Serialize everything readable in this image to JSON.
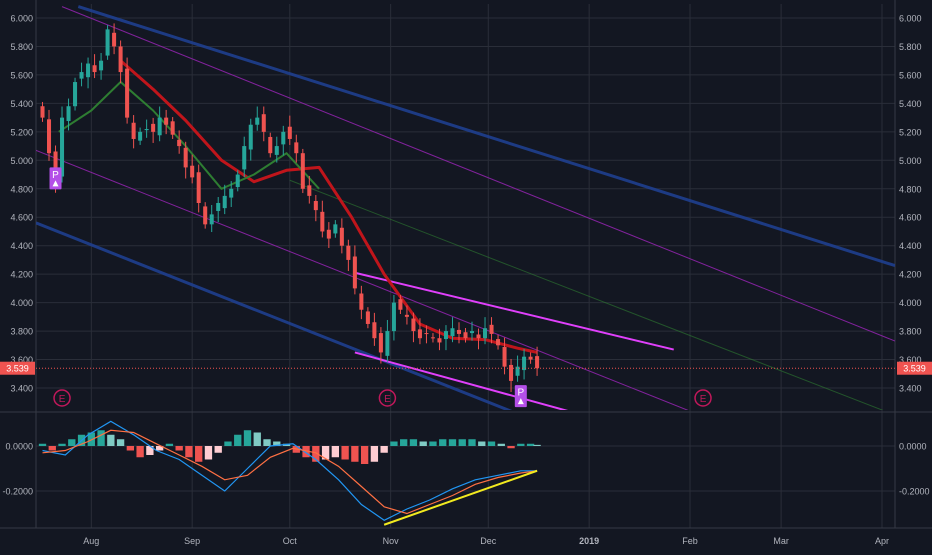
{
  "colors": {
    "background": "#131722",
    "grid": "#2a2e39",
    "axis_text": "#b2b5be",
    "candle_up": "#26a69a",
    "candle_down": "#ef5350",
    "price_badge": "#ef5350",
    "ma_red": "#c0151b",
    "ma_green": "#2e7d32",
    "channel_blue": "#1f3f8f",
    "channel_purple": "#8e24aa",
    "wedge_magenta": "#e040fb",
    "macd_line": "#2196f3",
    "signal_line": "#ff7043",
    "divergence_line": "#f2ea1f",
    "event_marker": "#c2185b"
  },
  "chart_data": [
    {
      "type": "candlestick",
      "title": "",
      "x_axis": {
        "range": [
          "2018-07-15",
          "2019-04-05"
        ],
        "ticks": [
          {
            "date": "2018-08-01",
            "label": "Aug"
          },
          {
            "date": "2018-09-01",
            "label": "Sep"
          },
          {
            "date": "2018-10-01",
            "label": "Oct"
          },
          {
            "date": "2018-11-01",
            "label": "Nov"
          },
          {
            "date": "2018-12-01",
            "label": "Dec"
          },
          {
            "date": "2019-01-01",
            "label": "2019"
          },
          {
            "date": "2019-02-01",
            "label": "Feb"
          },
          {
            "date": "2019-03-01",
            "label": "Mar"
          },
          {
            "date": "2019-04-01",
            "label": "Apr"
          }
        ]
      },
      "y_axis": {
        "range": [
          3.2,
          6.0
        ],
        "ticks": [
          "6.000",
          "5.800",
          "5.600",
          "5.400",
          "5.200",
          "5.000",
          "4.800",
          "4.600",
          "4.400",
          "4.200",
          "4.000",
          "3.800",
          "3.600",
          "3.400"
        ],
        "position": "both sides"
      },
      "last_price": "3.539",
      "grid": true,
      "closes": [
        [
          "2018-07-17",
          5.3
        ],
        [
          "2018-07-19",
          5.05
        ],
        [
          "2018-07-21",
          4.85
        ],
        [
          "2018-07-23",
          5.3
        ],
        [
          "2018-07-25",
          5.38
        ],
        [
          "2018-07-27",
          5.55
        ],
        [
          "2018-07-29",
          5.62
        ],
        [
          "2018-07-31",
          5.68
        ],
        [
          "2018-08-02",
          5.62
        ],
        [
          "2018-08-04",
          5.7
        ],
        [
          "2018-08-06",
          5.92
        ],
        [
          "2018-08-08",
          5.8
        ],
        [
          "2018-08-10",
          5.62
        ],
        [
          "2018-08-12",
          5.3
        ],
        [
          "2018-08-14",
          5.15
        ],
        [
          "2018-08-16",
          5.2
        ],
        [
          "2018-08-18",
          5.22
        ],
        [
          "2018-08-20",
          5.2
        ],
        [
          "2018-08-22",
          5.3
        ],
        [
          "2018-08-24",
          5.25
        ],
        [
          "2018-08-26",
          5.18
        ],
        [
          "2018-08-28",
          5.1
        ],
        [
          "2018-08-30",
          4.95
        ],
        [
          "2018-09-01",
          4.88
        ],
        [
          "2018-09-03",
          4.7
        ],
        [
          "2018-09-05",
          4.55
        ],
        [
          "2018-09-07",
          4.62
        ],
        [
          "2018-09-09",
          4.7
        ],
        [
          "2018-09-11",
          4.75
        ],
        [
          "2018-09-13",
          4.8
        ],
        [
          "2018-09-15",
          4.9
        ],
        [
          "2018-09-17",
          5.1
        ],
        [
          "2018-09-19",
          5.25
        ],
        [
          "2018-09-21",
          5.3
        ],
        [
          "2018-09-23",
          5.2
        ],
        [
          "2018-09-25",
          5.05
        ],
        [
          "2018-09-27",
          5.1
        ],
        [
          "2018-09-29",
          5.2
        ],
        [
          "2018-10-01",
          5.15
        ],
        [
          "2018-10-03",
          5.05
        ],
        [
          "2018-10-05",
          4.8
        ],
        [
          "2018-10-07",
          4.75
        ],
        [
          "2018-10-09",
          4.65
        ],
        [
          "2018-10-11",
          4.5
        ],
        [
          "2018-10-13",
          4.45
        ],
        [
          "2018-10-15",
          4.55
        ],
        [
          "2018-10-17",
          4.4
        ],
        [
          "2018-10-19",
          4.3
        ],
        [
          "2018-10-21",
          4.1
        ],
        [
          "2018-10-23",
          3.95
        ],
        [
          "2018-10-25",
          3.85
        ],
        [
          "2018-10-27",
          3.75
        ],
        [
          "2018-10-29",
          3.65
        ],
        [
          "2018-10-31",
          3.8
        ],
        [
          "2018-11-02",
          4.0
        ],
        [
          "2018-11-04",
          3.95
        ],
        [
          "2018-11-06",
          3.9
        ],
        [
          "2018-11-08",
          3.8
        ],
        [
          "2018-11-10",
          3.75
        ],
        [
          "2018-11-12",
          3.78
        ],
        [
          "2018-11-14",
          3.75
        ],
        [
          "2018-11-16",
          3.72
        ],
        [
          "2018-11-18",
          3.8
        ],
        [
          "2018-11-20",
          3.82
        ],
        [
          "2018-11-22",
          3.78
        ],
        [
          "2018-11-24",
          3.75
        ],
        [
          "2018-11-26",
          3.8
        ],
        [
          "2018-11-28",
          3.75
        ],
        [
          "2018-11-30",
          3.82
        ],
        [
          "2018-12-02",
          3.78
        ],
        [
          "2018-12-04",
          3.7
        ],
        [
          "2018-12-06",
          3.55
        ],
        [
          "2018-12-08",
          3.45
        ],
        [
          "2018-12-10",
          3.55
        ],
        [
          "2018-12-12",
          3.62
        ],
        [
          "2018-12-14",
          3.6
        ],
        [
          "2018-12-16",
          3.539
        ]
      ],
      "moving_average_red": [
        [
          "2018-08-10",
          5.7
        ],
        [
          "2018-08-20",
          5.5
        ],
        [
          "2018-08-30",
          5.28
        ],
        [
          "2018-09-10",
          5.0
        ],
        [
          "2018-09-20",
          4.85
        ],
        [
          "2018-09-30",
          4.93
        ],
        [
          "2018-10-10",
          4.95
        ],
        [
          "2018-10-20",
          4.6
        ],
        [
          "2018-10-30",
          4.2
        ],
        [
          "2018-11-10",
          3.85
        ],
        [
          "2018-11-20",
          3.75
        ],
        [
          "2018-11-30",
          3.74
        ],
        [
          "2018-12-10",
          3.68
        ],
        [
          "2018-12-16",
          3.65
        ]
      ],
      "moving_average_green": [
        [
          "2018-07-22",
          5.2
        ],
        [
          "2018-08-01",
          5.35
        ],
        [
          "2018-08-10",
          5.55
        ],
        [
          "2018-08-20",
          5.35
        ],
        [
          "2018-08-30",
          5.1
        ],
        [
          "2018-09-10",
          4.8
        ],
        [
          "2018-09-20",
          4.9
        ],
        [
          "2018-09-30",
          5.05
        ],
        [
          "2018-10-10",
          4.8
        ]
      ],
      "event_markers": [
        {
          "date": "2018-07-23",
          "label": "E"
        },
        {
          "date": "2018-10-31",
          "label": "E"
        },
        {
          "date": "2019-02-05",
          "label": "E"
        }
      ],
      "p_badges": [
        {
          "date": "2018-07-21",
          "price": 4.88,
          "label": "P"
        },
        {
          "date": "2018-12-11",
          "price": 3.35,
          "label": "P"
        }
      ]
    },
    {
      "type": "macd",
      "y_axis": {
        "range": [
          -0.38,
          0.13
        ],
        "ticks": [
          "0.0000",
          "-0.2000"
        ]
      },
      "histogram": [
        [
          "2018-07-17",
          0.01
        ],
        [
          "2018-07-20",
          -0.02
        ],
        [
          "2018-07-23",
          0.01
        ],
        [
          "2018-07-26",
          0.03
        ],
        [
          "2018-07-29",
          0.05
        ],
        [
          "2018-08-01",
          0.06
        ],
        [
          "2018-08-04",
          0.07
        ],
        [
          "2018-08-07",
          0.05
        ],
        [
          "2018-08-10",
          0.03
        ],
        [
          "2018-08-13",
          -0.02
        ],
        [
          "2018-08-16",
          -0.05
        ],
        [
          "2018-08-19",
          -0.04
        ],
        [
          "2018-08-22",
          -0.02
        ],
        [
          "2018-08-25",
          0.01
        ],
        [
          "2018-08-28",
          -0.02
        ],
        [
          "2018-08-31",
          -0.05
        ],
        [
          "2018-09-03",
          -0.07
        ],
        [
          "2018-09-06",
          -0.06
        ],
        [
          "2018-09-09",
          -0.03
        ],
        [
          "2018-09-12",
          0.02
        ],
        [
          "2018-09-15",
          0.05
        ],
        [
          "2018-09-18",
          0.07
        ],
        [
          "2018-09-21",
          0.06
        ],
        [
          "2018-09-24",
          0.03
        ],
        [
          "2018-09-27",
          0.02
        ],
        [
          "2018-09-30",
          0.01
        ],
        [
          "2018-10-03",
          -0.03
        ],
        [
          "2018-10-06",
          -0.05
        ],
        [
          "2018-10-09",
          -0.07
        ],
        [
          "2018-10-12",
          -0.06
        ],
        [
          "2018-10-15",
          -0.05
        ],
        [
          "2018-10-18",
          -0.06
        ],
        [
          "2018-10-21",
          -0.07
        ],
        [
          "2018-10-24",
          -0.08
        ],
        [
          "2018-10-27",
          -0.07
        ],
        [
          "2018-10-30",
          -0.03
        ],
        [
          "2018-11-02",
          0.02
        ],
        [
          "2018-11-05",
          0.03
        ],
        [
          "2018-11-08",
          0.03
        ],
        [
          "2018-11-11",
          0.02
        ],
        [
          "2018-11-14",
          0.02
        ],
        [
          "2018-11-17",
          0.03
        ],
        [
          "2018-11-20",
          0.03
        ],
        [
          "2018-11-23",
          0.03
        ],
        [
          "2018-11-26",
          0.03
        ],
        [
          "2018-11-29",
          0.02
        ],
        [
          "2018-12-02",
          0.02
        ],
        [
          "2018-12-05",
          0.01
        ],
        [
          "2018-12-08",
          -0.01
        ],
        [
          "2018-12-11",
          0.01
        ],
        [
          "2018-12-14",
          0.01
        ],
        [
          "2018-12-16",
          0.005
        ]
      ],
      "macd_line": [
        [
          "2018-07-17",
          -0.02
        ],
        [
          "2018-07-24",
          -0.04
        ],
        [
          "2018-07-31",
          0.05
        ],
        [
          "2018-08-07",
          0.11
        ],
        [
          "2018-08-14",
          0.05
        ],
        [
          "2018-08-21",
          -0.02
        ],
        [
          "2018-08-28",
          -0.06
        ],
        [
          "2018-09-04",
          -0.13
        ],
        [
          "2018-09-11",
          -0.2
        ],
        [
          "2018-09-18",
          -0.1
        ],
        [
          "2018-09-25",
          0.0
        ],
        [
          "2018-10-02",
          0.01
        ],
        [
          "2018-10-09",
          -0.06
        ],
        [
          "2018-10-16",
          -0.15
        ],
        [
          "2018-10-23",
          -0.26
        ],
        [
          "2018-10-30",
          -0.33
        ],
        [
          "2018-11-06",
          -0.28
        ],
        [
          "2018-11-13",
          -0.24
        ],
        [
          "2018-11-20",
          -0.19
        ],
        [
          "2018-11-27",
          -0.15
        ],
        [
          "2018-12-04",
          -0.13
        ],
        [
          "2018-12-11",
          -0.11
        ],
        [
          "2018-12-16",
          -0.11
        ]
      ],
      "signal_line": [
        [
          "2018-07-17",
          -0.03
        ],
        [
          "2018-07-24",
          -0.02
        ],
        [
          "2018-07-31",
          0.02
        ],
        [
          "2018-08-07",
          0.07
        ],
        [
          "2018-08-14",
          0.06
        ],
        [
          "2018-08-21",
          0.01
        ],
        [
          "2018-08-28",
          -0.04
        ],
        [
          "2018-09-04",
          -0.09
        ],
        [
          "2018-09-11",
          -0.15
        ],
        [
          "2018-09-18",
          -0.13
        ],
        [
          "2018-09-25",
          -0.05
        ],
        [
          "2018-10-02",
          -0.01
        ],
        [
          "2018-10-09",
          -0.03
        ],
        [
          "2018-10-16",
          -0.09
        ],
        [
          "2018-10-23",
          -0.18
        ],
        [
          "2018-10-30",
          -0.27
        ],
        [
          "2018-11-06",
          -0.3
        ],
        [
          "2018-11-13",
          -0.26
        ],
        [
          "2018-11-20",
          -0.22
        ],
        [
          "2018-11-27",
          -0.17
        ],
        [
          "2018-12-04",
          -0.14
        ],
        [
          "2018-12-11",
          -0.12
        ],
        [
          "2018-12-16",
          -0.11
        ]
      ],
      "divergence_line": [
        [
          "2018-10-30",
          -0.35
        ],
        [
          "2018-12-16",
          -0.11
        ]
      ]
    }
  ],
  "annotations": {
    "wedge_upper": [
      [
        "2018-10-21",
        4.21
      ],
      [
        "2019-01-27",
        3.67
      ]
    ],
    "wedge_lower": [
      [
        "2018-10-21",
        3.65
      ],
      [
        "2018-12-30",
        3.21
      ]
    ],
    "channel_lines": [
      {
        "color": "blue",
        "from": [
          "2018-07-28",
          6.08
        ],
        "to": [
          "2019-04-05",
          4.26
        ]
      },
      {
        "color": "blue",
        "from": [
          "2018-07-15",
          4.56
        ],
        "to": [
          "2018-12-11",
          3.21
        ]
      },
      {
        "color": "purple",
        "from": [
          "2018-07-23",
          6.08
        ],
        "to": [
          "2019-04-05",
          3.73
        ]
      },
      {
        "color": "purple",
        "from": [
          "2018-07-15",
          5.07
        ],
        "to": [
          "2019-02-04",
          3.21
        ]
      },
      {
        "color": "green",
        "from": [
          "2018-10-01",
          4.86
        ],
        "to": [
          "2019-04-05",
          3.21
        ]
      }
    ]
  }
}
